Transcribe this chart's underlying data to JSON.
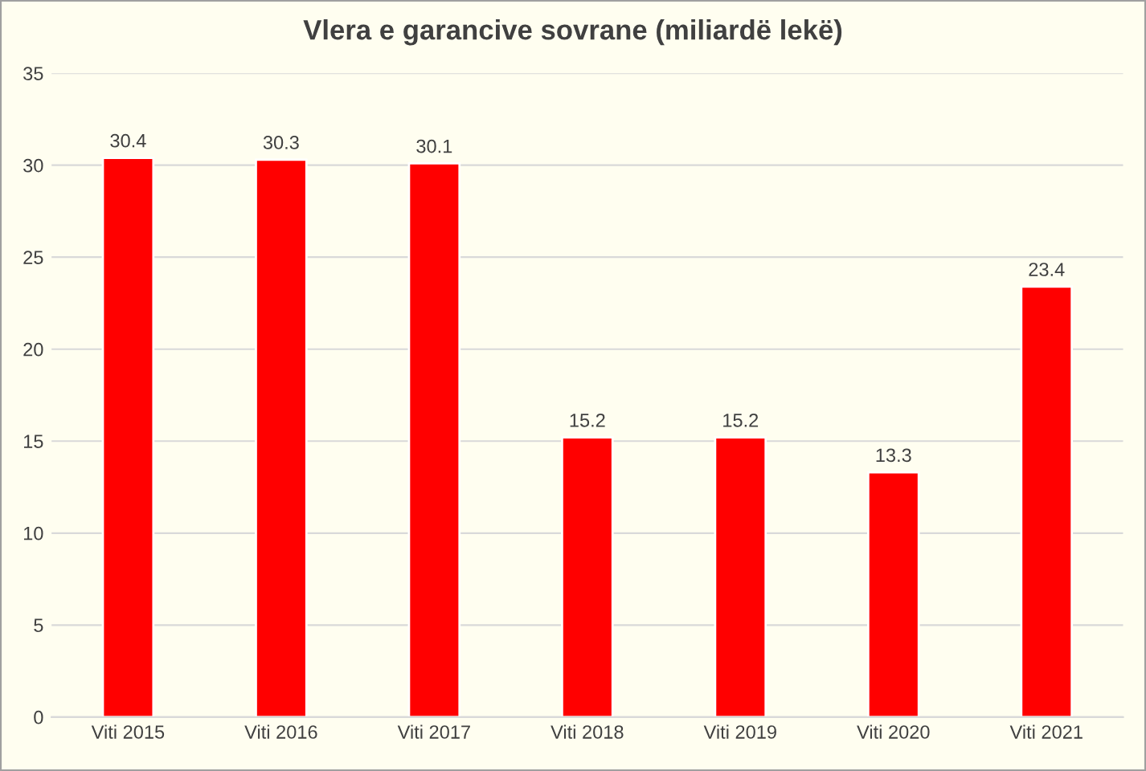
{
  "chart_data": {
    "type": "bar",
    "title": "Vlera e garancive sovrane (miliardë lekë)",
    "categories": [
      "Viti 2015",
      "Viti 2016",
      "Viti 2017",
      "Viti 2018",
      "Viti 2019",
      "Viti 2020",
      "Viti 2021"
    ],
    "values": [
      30.4,
      30.3,
      30.1,
      15.2,
      15.2,
      13.3,
      23.4
    ],
    "color": "#ff0000",
    "ylim": [
      0,
      35
    ],
    "yticks": [
      0,
      5,
      10,
      15,
      20,
      25,
      30,
      35
    ],
    "grid": "y",
    "data_labels": true
  }
}
